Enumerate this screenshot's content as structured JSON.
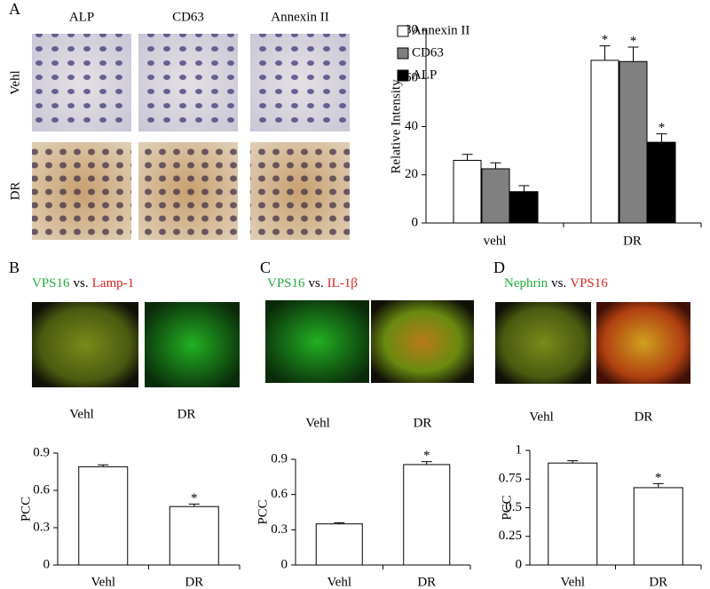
{
  "panels": {
    "A": {
      "letter": "A",
      "columns": [
        "ALP",
        "CD63",
        "Annexin II"
      ],
      "rows": [
        "Vehl",
        "DR"
      ]
    },
    "B": {
      "letter": "B",
      "title": [
        {
          "text": "VPS16",
          "color": "#1fae3a"
        },
        {
          "text": "vs.",
          "color": "#000000"
        },
        {
          "text": "Lamp-1",
          "color": "#e0201b"
        }
      ],
      "images": [
        "Vehl",
        "DR"
      ]
    },
    "C": {
      "letter": "C",
      "title": [
        {
          "text": "VPS16",
          "color": "#1fae3a"
        },
        {
          "text": "vs.",
          "color": "#000000"
        },
        {
          "text": "IL-1β",
          "color": "#e0201b"
        }
      ],
      "images": [
        "Vehl",
        "DR"
      ]
    },
    "D": {
      "letter": "D",
      "title": [
        {
          "text": "Nephrin",
          "color": "#1fae3a"
        },
        {
          "text": "vs.",
          "color": "#000000"
        },
        {
          "text": "VPS16",
          "color": "#e0201b"
        }
      ],
      "images": [
        "Vehl",
        "DR"
      ]
    }
  },
  "chart_data": [
    {
      "type": "bar",
      "y_label": "Relative Intensity",
      "categories": [
        "vehl",
        "DR"
      ],
      "series": [
        {
          "name": "Annexin II",
          "color": "#ffffff",
          "values": [
            26,
            67.5
          ],
          "errors": [
            2.5,
            6
          ],
          "significance": [
            null,
            "*"
          ]
        },
        {
          "name": "CD63",
          "color": "#808080",
          "values": [
            22.5,
            67
          ],
          "errors": [
            2.5,
            6
          ],
          "significance": [
            null,
            "*"
          ]
        },
        {
          "name": "ALP",
          "color": "#000000",
          "values": [
            13,
            33.5
          ],
          "errors": [
            2.5,
            3.5
          ],
          "significance": [
            null,
            "*"
          ]
        }
      ],
      "ylim": [
        0,
        80
      ],
      "yticks": [
        0,
        20,
        40,
        60,
        80
      ],
      "legend": "top-left"
    },
    {
      "type": "bar",
      "y_label": "PCC",
      "categories": [
        "Vehl",
        "DR"
      ],
      "series": [
        {
          "color": "#ffffff",
          "values": [
            0.79,
            0.47
          ],
          "errors": [
            0.015,
            0.02
          ],
          "significance": [
            null,
            "*"
          ]
        }
      ],
      "ylim": [
        0,
        0.9
      ],
      "yticks": [
        0,
        0.3,
        0.6,
        0.9
      ]
    },
    {
      "type": "bar",
      "y_label": "PCC",
      "categories": [
        "Vehl",
        "DR"
      ],
      "series": [
        {
          "color": "#ffffff",
          "values": [
            0.35,
            0.855
          ],
          "errors": [
            0.01,
            0.025
          ],
          "significance": [
            null,
            "*"
          ]
        }
      ],
      "ylim": [
        0,
        0.9
      ],
      "yticks": [
        0,
        0.3,
        0.6,
        0.9
      ]
    },
    {
      "type": "bar",
      "y_label": "PCC",
      "categories": [
        "Vehl",
        "DR"
      ],
      "series": [
        {
          "color": "#ffffff",
          "values": [
            0.89,
            0.675
          ],
          "errors": [
            0.02,
            0.035
          ],
          "significance": [
            null,
            "*"
          ]
        }
      ],
      "ylim": [
        0,
        1
      ],
      "yticks": [
        0,
        0.25,
        0.5,
        0.75,
        1
      ]
    }
  ]
}
